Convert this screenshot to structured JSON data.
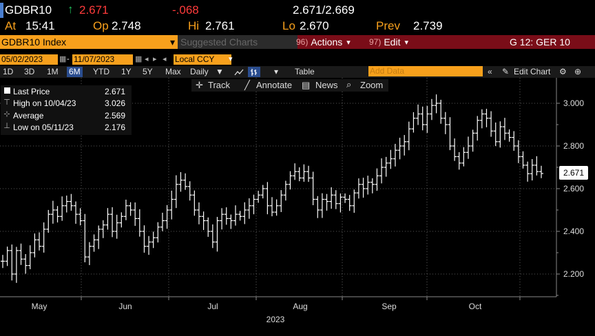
{
  "quote": {
    "ticker": "GDBR10",
    "last": "2.671",
    "last_arrow": "↑",
    "change": "-.068",
    "bid_ask": "2.671/2.669",
    "at_label": "At",
    "at_time": "15:41",
    "open_label": "Op",
    "open": "2.748",
    "high_label": "Hi",
    "high": "2.761",
    "low_label": "Lo",
    "low": "2.670",
    "prev_label": "Prev",
    "prev": "2.739"
  },
  "menubar": {
    "security": "GDBR10 Index",
    "suggested": "Suggested Charts",
    "actions_num": "96)",
    "actions": "Actions",
    "edit_num": "97)",
    "edit": "Edit",
    "function": "G 12: GER 10"
  },
  "dates": {
    "start": "05/02/2023",
    "end": "11/07/2023",
    "currency": "Local CCY"
  },
  "periods": [
    "1D",
    "3D",
    "1M",
    "6M",
    "YTD",
    "1Y",
    "5Y",
    "Max"
  ],
  "periods_active": "6M",
  "frequency": "Daily",
  "table_label": "Table",
  "add_data_placeholder": "Add Data",
  "edit_chart": "Edit Chart",
  "tools": {
    "track": "Track",
    "annotate": "Annotate",
    "news": "News",
    "zoom": "Zoom"
  },
  "legend": {
    "last_label": "Last Price",
    "last_value": "2.671",
    "high_label": "High on 10/04/23",
    "high_value": "3.026",
    "avg_label": "Average",
    "avg_value": "2.569",
    "low_label": "Low on 05/11/23",
    "low_value": "2.176"
  },
  "colors": {
    "amber": "#f7a01c",
    "red": "#ff3b3b",
    "menubar": "#7a0d18",
    "active": "#2a4d8f"
  },
  "chart_data": {
    "type": "line",
    "title": "",
    "xlabel": "2023",
    "ylabel": "",
    "x_ticks": [
      "May",
      "Jun",
      "Jul",
      "Aug",
      "Sep",
      "Oct"
    ],
    "y_ticks": [
      "3.000",
      "2.800",
      "2.600",
      "2.400",
      "2.200"
    ],
    "ylim": [
      2.1,
      3.1
    ],
    "grid": true,
    "last_value_tag": "2.671",
    "series": [
      {
        "values": [
          2.26,
          2.31,
          2.2,
          2.31,
          2.27,
          2.24,
          2.3,
          2.36,
          2.33,
          2.41,
          2.48,
          2.5,
          2.47,
          2.52,
          2.54,
          2.52,
          2.48,
          2.45,
          2.28,
          2.33,
          2.36,
          2.41,
          2.43,
          2.48,
          2.4,
          2.44,
          2.47,
          2.52,
          2.5,
          2.46,
          2.4,
          2.33,
          2.35,
          2.37,
          2.42,
          2.45,
          2.5,
          2.55,
          2.62,
          2.64,
          2.61,
          2.57,
          2.5,
          2.47,
          2.45,
          2.4,
          2.35,
          2.45,
          2.48,
          2.46,
          2.45,
          2.48,
          2.47,
          2.5,
          2.52,
          2.55,
          2.57,
          2.6,
          2.52,
          2.49,
          2.52,
          2.57,
          2.62,
          2.66,
          2.68,
          2.65,
          2.68,
          2.65,
          2.55,
          2.5,
          2.55,
          2.54,
          2.57,
          2.53,
          2.56,
          2.55,
          2.52,
          2.58,
          2.62,
          2.6,
          2.63,
          2.62,
          2.66,
          2.7,
          2.72,
          2.74,
          2.78,
          2.8,
          2.82,
          2.88,
          2.93,
          2.95,
          2.9,
          2.95,
          2.99,
          3.0,
          2.93,
          2.9,
          2.8,
          2.75,
          2.72,
          2.77,
          2.8,
          2.86,
          2.92,
          2.95,
          2.93,
          2.87,
          2.82,
          2.89,
          2.86,
          2.84,
          2.8,
          2.75,
          2.71,
          2.67,
          2.71,
          2.68,
          2.671
        ]
      }
    ]
  }
}
